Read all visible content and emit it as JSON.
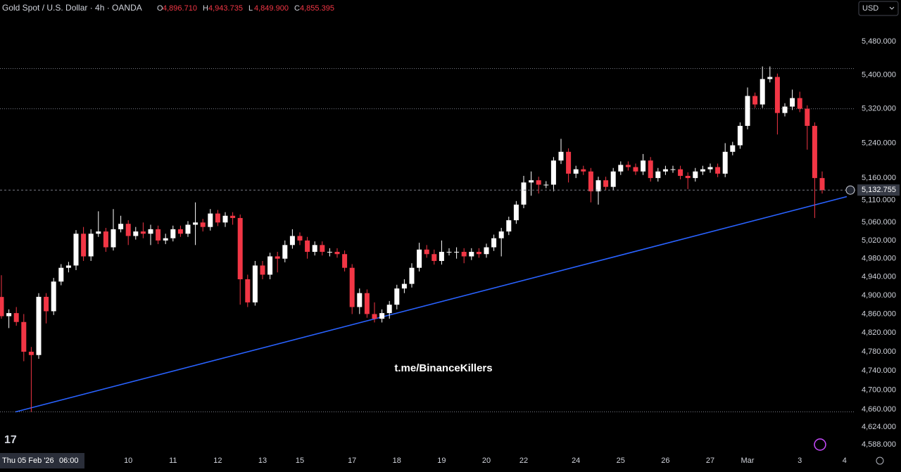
{
  "chart_data": {
    "type": "candlestick",
    "title": "Gold Spot / U.S. Dollar · 4h · OANDA",
    "legend": {
      "open_label": "O",
      "open": "4,896.710",
      "high_label": "H",
      "high": "4,943.735",
      "low_label": "L",
      "low": "4,849.900",
      "close_label": "C",
      "close": "4,855.395"
    },
    "currency": "USD",
    "watermark": "t.me/BinanceKillers",
    "crosshair_time": "Thu 05 Feb '26",
    "crosshair_clock": "06:00",
    "log_scale": true,
    "up_color": "#ffffff",
    "down_color": "#f23645",
    "categories": [
      null,
      null,
      null,
      null,
      null,
      null,
      null,
      null,
      null,
      null,
      null,
      null,
      null,
      null,
      null,
      null,
      null,
      "10",
      null,
      null,
      null,
      null,
      null,
      "11",
      null,
      null,
      null,
      null,
      null,
      "12",
      null,
      null,
      null,
      null,
      null,
      "13",
      null,
      null,
      null,
      null,
      "15",
      null,
      null,
      null,
      null,
      null,
      null,
      "17",
      null,
      null,
      null,
      null,
      null,
      "18",
      null,
      null,
      null,
      null,
      null,
      "19",
      null,
      null,
      null,
      null,
      null,
      "20",
      null,
      null,
      null,
      null,
      "22",
      null,
      null,
      null,
      null,
      null,
      null,
      "24",
      null,
      null,
      null,
      null,
      null,
      "25",
      null,
      null,
      null,
      null,
      null,
      "26",
      null,
      null,
      null,
      null,
      null,
      "27",
      null,
      null,
      null,
      null,
      "Mar",
      null,
      null,
      null,
      null,
      null,
      null,
      "3",
      null,
      null,
      null,
      null,
      null,
      "4"
    ],
    "open": [
      4896.71,
      4855.395,
      4862,
      4843,
      4780,
      4773,
      4897,
      4866,
      4930,
      4960,
      4965,
      5035,
      4985,
      5035,
      5040,
      5005,
      5045,
      5057,
      5030,
      5040,
      5035,
      5045,
      5020,
      5025,
      5045,
      5035,
      5055,
      5060,
      5050,
      5080,
      5060,
      5075,
      5070,
      4935,
      4885,
      4965,
      4945,
      4985,
      4980,
      5010,
      5030,
      5020,
      4995,
      5010,
      4995,
      4995,
      4990,
      4960,
      4875,
      4905,
      4860,
      4850,
      4862,
      4880,
      4915,
      4925,
      4960,
      5000,
      4990,
      4975,
      4995,
      4995,
      4995,
      4985,
      4995,
      4990,
      5005,
      5025,
      5040,
      5065,
      5100,
      5150,
      5155,
      5145,
      5145,
      5200,
      5220,
      5170,
      5180,
      5175,
      5130,
      5155,
      5140,
      5175,
      5190,
      5185,
      5175,
      5200,
      5160,
      5175,
      5180,
      5180,
      5165,
      5160,
      5175,
      5180,
      5185,
      5170,
      5220,
      5235,
      5280,
      5350,
      5330,
      5390,
      5395,
      5310,
      5325,
      5345,
      5320,
      5280,
      5160,
      null,
      null,
      null
    ],
    "high": [
      4943.735,
      4870,
      4875,
      4860,
      4790,
      4905,
      4905,
      4938,
      4968,
      4973,
      5043,
      5050,
      5045,
      5085,
      5048,
      5090,
      5075,
      5065,
      5050,
      5060,
      5055,
      5053,
      5035,
      5053,
      5053,
      5063,
      5105,
      5068,
      5090,
      5088,
      5083,
      5083,
      5078,
      4945,
      4975,
      4975,
      4993,
      4995,
      5020,
      5045,
      5038,
      5028,
      5018,
      5018,
      5003,
      5003,
      4998,
      4968,
      4915,
      4913,
      4885,
      4870,
      4888,
      4923,
      4935,
      4970,
      5015,
      5010,
      5000,
      5020,
      5003,
      5005,
      5003,
      5003,
      5003,
      5013,
      5033,
      5048,
      5073,
      5108,
      5165,
      5175,
      5163,
      5153,
      5208,
      5250,
      5228,
      5188,
      5188,
      5183,
      5163,
      5163,
      5183,
      5198,
      5198,
      5193,
      5215,
      5208,
      5183,
      5188,
      5188,
      5188,
      5173,
      5183,
      5188,
      5193,
      5193,
      5240,
      5243,
      5288,
      5370,
      5358,
      5420,
      5420,
      5403,
      5333,
      5365,
      5360,
      5328,
      5288,
      5175,
      null,
      null,
      null
    ],
    "low": [
      4849.9,
      4830,
      4835,
      4760,
      4655,
      4765,
      4840,
      4858,
      4922,
      4950,
      4955,
      4975,
      4975,
      5028,
      4995,
      4998,
      5038,
      5010,
      5022,
      5025,
      5010,
      5012,
      5012,
      5018,
      5028,
      5028,
      5010,
      5040,
      5042,
      5052,
      5050,
      5055,
      4880,
      4875,
      4878,
      4935,
      4935,
      4950,
      4972,
      5002,
      5010,
      4980,
      4987,
      4987,
      4985,
      4982,
      4952,
      4860,
      4860,
      4852,
      4842,
      4842,
      4850,
      4870,
      4905,
      4917,
      4952,
      4982,
      4967,
      4967,
      4987,
      4980,
      4970,
      4977,
      4982,
      4982,
      4997,
      4985,
      5032,
      5057,
      5092,
      5120,
      5125,
      5137,
      5130,
      5192,
      5150,
      5160,
      5167,
      5105,
      5100,
      5132,
      5132,
      5167,
      5177,
      5167,
      5167,
      5152,
      5152,
      5167,
      5172,
      5157,
      5135,
      5152,
      5167,
      5172,
      5162,
      5162,
      5212,
      5227,
      5272,
      5322,
      5322,
      5382,
      5260,
      5302,
      5317,
      5312,
      5225,
      5070,
      5125,
      null,
      null,
      null
    ],
    "close": [
      4855.395,
      4862,
      4843,
      4780,
      4773,
      4897,
      4866,
      4930,
      4960,
      4965,
      5035,
      4985,
      5035,
      5040,
      5005,
      5045,
      5057,
      5030,
      5040,
      5035,
      5045,
      5020,
      5025,
      5045,
      5035,
      5055,
      5060,
      5050,
      5080,
      5060,
      5075,
      5070,
      4935,
      4885,
      4965,
      4945,
      4985,
      4980,
      5010,
      5030,
      5020,
      4995,
      5010,
      4995,
      4995,
      4990,
      4960,
      4875,
      4905,
      4860,
      4850,
      4862,
      4880,
      4915,
      4925,
      4960,
      5000,
      4990,
      4975,
      4995,
      4995,
      4995,
      4985,
      4995,
      4990,
      5005,
      5025,
      5040,
      5065,
      5100,
      5150,
      5155,
      5145,
      5145,
      5200,
      5220,
      5170,
      5180,
      5175,
      5130,
      5155,
      5140,
      5175,
      5190,
      5185,
      5175,
      5200,
      5160,
      5175,
      5180,
      5180,
      5165,
      5160,
      5175,
      5180,
      5185,
      5170,
      5220,
      5235,
      5280,
      5350,
      5330,
      5390,
      5395,
      5310,
      5325,
      5345,
      5320,
      5280,
      5160,
      5132.755,
      null,
      null,
      null
    ],
    "last_price": {
      "value": 5132.755,
      "label": "5,132.755"
    },
    "trendline": {
      "color": "#2962ff",
      "start": [
        1.9,
        4655
      ],
      "end": [
        113.3,
        5118
      ]
    },
    "horizontal_levels": [
      5415,
      5320,
      4655
    ],
    "ylim": [
      4570,
      5581
    ],
    "yticks": [
      {
        "value": 5480,
        "label": "5,480.000"
      },
      {
        "value": 5400,
        "label": "5,400.000"
      },
      {
        "value": 5320,
        "label": "5,320.000"
      },
      {
        "value": 5240,
        "label": "5,240.000"
      },
      {
        "value": 5160,
        "label": "5,160.000"
      },
      {
        "value": 5110,
        "label": "5,110.000"
      },
      {
        "value": 5060,
        "label": "5,060.000"
      },
      {
        "value": 5020,
        "label": "5,020.000"
      },
      {
        "value": 4980,
        "label": "4,980.000"
      },
      {
        "value": 4940,
        "label": "4,940.000"
      },
      {
        "value": 4900,
        "label": "4,900.000"
      },
      {
        "value": 4860,
        "label": "4,860.000"
      },
      {
        "value": 4820,
        "label": "4,820.000"
      },
      {
        "value": 4780,
        "label": "4,780.000"
      },
      {
        "value": 4740,
        "label": "4,740.000"
      },
      {
        "value": 4700,
        "label": "4,700.000"
      },
      {
        "value": 4660,
        "label": "4,660.000"
      },
      {
        "value": 4624,
        "label": "4,624.000"
      },
      {
        "value": 4588,
        "label": "4,588.000"
      }
    ]
  }
}
